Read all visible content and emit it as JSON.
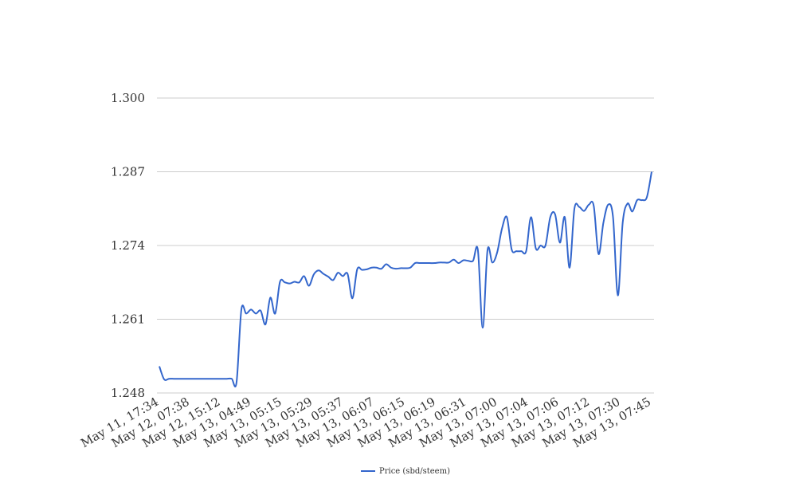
{
  "chart_data": {
    "type": "line",
    "title": "",
    "xlabel": "",
    "ylabel": "",
    "ylim": [
      1.248,
      1.3
    ],
    "y_ticks": [
      "1.248",
      "1.261",
      "1.274",
      "1.287",
      "1.300"
    ],
    "x_tick_labels": [
      "May 11, 17:34",
      "May 12, 07:38",
      "May 12, 15:12",
      "May 13, 04:49",
      "May 13, 05:15",
      "May 13, 05:29",
      "May 13, 05:37",
      "May 13, 06:07",
      "May 13, 06:15",
      "May 13, 06:19",
      "May 13, 06:31",
      "May 13, 07:00",
      "May 13, 07:04",
      "May 13, 07:06",
      "May 13, 07:12",
      "May 13, 07:30",
      "May 13, 07:45"
    ],
    "grid": true,
    "legend_position": "bottom",
    "series": [
      {
        "name": "Price (sbd/steem)",
        "color": "#3366cc",
        "values": [
          1.2527,
          1.2504,
          1.2505,
          1.2505,
          1.2505,
          1.2505,
          1.2505,
          1.2505,
          1.2505,
          1.2505,
          1.2505,
          1.2505,
          1.2505,
          1.2505,
          1.2505,
          1.2505,
          1.2499,
          1.2627,
          1.262,
          1.2627,
          1.262,
          1.2625,
          1.2601,
          1.2648,
          1.262,
          1.2676,
          1.2675,
          1.2673,
          1.2676,
          1.2675,
          1.2686,
          1.2669,
          1.2689,
          1.2696,
          1.269,
          1.2685,
          1.2679,
          1.2692,
          1.2686,
          1.269,
          1.2647,
          1.2698,
          1.2697,
          1.2698,
          1.2701,
          1.2701,
          1.2699,
          1.2707,
          1.2701,
          1.2699,
          1.27,
          1.27,
          1.2701,
          1.2709,
          1.2709,
          1.2709,
          1.2709,
          1.2709,
          1.271,
          1.271,
          1.271,
          1.2715,
          1.2709,
          1.2714,
          1.2713,
          1.2713,
          1.2732,
          1.2595,
          1.2732,
          1.271,
          1.2728,
          1.277,
          1.279,
          1.2733,
          1.273,
          1.273,
          1.273,
          1.279,
          1.2735,
          1.274,
          1.274,
          1.279,
          1.2795,
          1.2745,
          1.279,
          1.2701,
          1.2805,
          1.2808,
          1.2801,
          1.2812,
          1.281,
          1.2725,
          1.278,
          1.2812,
          1.279,
          1.2652,
          1.278,
          1.2814,
          1.28,
          1.282,
          1.282,
          1.2825,
          1.287
        ]
      }
    ]
  }
}
